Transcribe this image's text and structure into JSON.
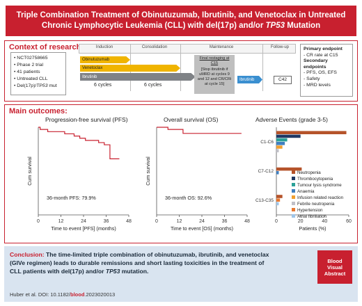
{
  "title": {
    "line1": "Triple Combination Treatment of Obinutuzumab, Ibrutinib, and Venetoclax in Untreated",
    "line2_a": "Chronic Lymphocytic Leukemia (CLL) with del(17p) and/or ",
    "line2_b": "TP53",
    "line2_c": " Mutation"
  },
  "context": {
    "heading": "Context of research:",
    "facts": [
      "NCT02758665",
      "Phase 2 trial",
      "41 patients",
      "Untreated CLL"
    ],
    "mutation_a": "Del(17p)/",
    "mutation_b": "TP53",
    "mutation_c": " mut",
    "phases": {
      "induction": "Induction",
      "consolidation": "Consolidation",
      "maintenance": "Maintenance",
      "followup": "Follow-up"
    },
    "drugs": {
      "obinutuzumab": "Obinutuzumab",
      "venetoclax": "Venetoclax",
      "ibrutinib": "Ibrutinib",
      "ibrutinib2": "Ibrutinib"
    },
    "cycles1": "6 cycles",
    "cycles2": "6 cycles",
    "restaging_title": "Final restaging at C15",
    "restaging_body": "[Stop ibrutinib if uMRD at cycles 9 and 12 and CR/CRi at cycle 15]",
    "c42": "C42",
    "endpoints": {
      "primary_heading": "Primary endpoint",
      "primary": "- CR rate at C15",
      "secondary_heading": "Secondary endpoints",
      "secondary": [
        "- PFS, OS, EFS",
        "- Safety",
        "- MRD levels"
      ]
    }
  },
  "outcomes": {
    "heading": "Main outcomes:",
    "pfs": {
      "title": "Progression-free survival (PFS)",
      "ylabel": "Cum survival",
      "xlabel": "Time to event [PFS] (months)",
      "note": "36-month PFS: 79.9%"
    },
    "os": {
      "title": "Overall survival (OS)",
      "ylabel": "Cum survival",
      "xlabel": "Time to event [OS] (months)",
      "note": "36-month OS: 92.6%"
    },
    "ae": {
      "title": "Adverse Events (grade 3-5)",
      "xlabel": "Patients (%)"
    }
  },
  "chart_data": [
    {
      "type": "line",
      "title": "Progression-free survival (PFS)",
      "xlabel": "Time to event [PFS] (months)",
      "ylabel": "Cum survival",
      "xticks": [
        "0",
        "12",
        "24",
        "36",
        "48"
      ],
      "xlim": [
        0,
        48
      ],
      "ylim": [
        0,
        1
      ],
      "series": [
        {
          "x": [
            0,
            1,
            4,
            5,
            11,
            14,
            17,
            19,
            22,
            25,
            30,
            32,
            35,
            37,
            38,
            41,
            43
          ],
          "y": [
            1.0,
            0.975,
            0.975,
            0.95,
            0.95,
            0.925,
            0.925,
            0.9,
            0.875,
            0.85,
            0.85,
            0.825,
            0.8,
            0.8,
            0.64,
            0.64,
            0.64
          ]
        }
      ]
    },
    {
      "type": "line",
      "title": "Overall survival (OS)",
      "xlabel": "Time to event [OS] (months)",
      "ylabel": "Cum survival",
      "xticks": [
        "0",
        "12",
        "24",
        "36",
        "48"
      ],
      "xlim": [
        0,
        48
      ],
      "ylim": [
        0,
        1
      ],
      "series": [
        {
          "x": [
            0,
            5,
            6,
            13,
            14,
            35,
            45
          ],
          "y": [
            1.0,
            1.0,
            0.975,
            0.975,
            0.93,
            0.93,
            0.93
          ]
        }
      ]
    },
    {
      "type": "bar",
      "title": "Adverse Events (grade 3-5)",
      "xlabel": "Patients (%)",
      "xticks": [
        "0",
        "20",
        "40",
        "60"
      ],
      "xlim": [
        0,
        60
      ],
      "groups": [
        "C1-C6",
        "C7-C12",
        "C13-C35"
      ],
      "series": [
        {
          "name": "Neutropenia",
          "color": "#b5532a",
          "values": [
            58,
            21,
            5
          ]
        },
        {
          "name": "Thrombocytopenia",
          "color": "#1f3864",
          "values": [
            20,
            0,
            0
          ]
        },
        {
          "name": "Tumour lysis syndrome",
          "color": "#2aa198",
          "values": [
            9,
            0,
            0
          ]
        },
        {
          "name": "Anaemia",
          "color": "#3f7fbf",
          "values": [
            7,
            2,
            0
          ]
        },
        {
          "name": "Infusion related reaction",
          "color": "#f0a030",
          "values": [
            5,
            0,
            0
          ]
        },
        {
          "name": "Febrile neutropenia",
          "color": "#c0c0c8",
          "values": [
            2,
            0,
            0
          ]
        },
        {
          "name": "Hypertension",
          "color": "#e87830",
          "values": [
            0,
            0,
            3
          ]
        },
        {
          "name": "Atrial fibrillation",
          "color": "#9fc5e8",
          "values": [
            0,
            0,
            2
          ]
        }
      ]
    }
  ],
  "conclusion": {
    "label": "Conclusion:",
    "text_a": " The time-limited triple combination of obinutuzumab, ibrutinib, and venetoclax",
    "text_b": "(GIVe regimen) leads to durable remissions and short lasting toxicities in the treatment of",
    "text_c": "CLL patients with del(17p) and/or ",
    "text_tp53": "TP53",
    "text_d": " mutation.",
    "citation_a": "Huber et al. DOI: 10.1182/",
    "citation_b": "blood",
    "citation_c": ".2023020013",
    "badge": [
      "Blood",
      "Visual",
      "Abstract"
    ]
  },
  "colors": {
    "accent": "#c8202f",
    "conclusion_bg": "#d9e4f0",
    "obinutuzumab": "#f0b400",
    "venetoclax": "#f0b400",
    "ibrutinib": "#7f8286",
    "ibrutinib_maint": "#3a8fd0"
  }
}
